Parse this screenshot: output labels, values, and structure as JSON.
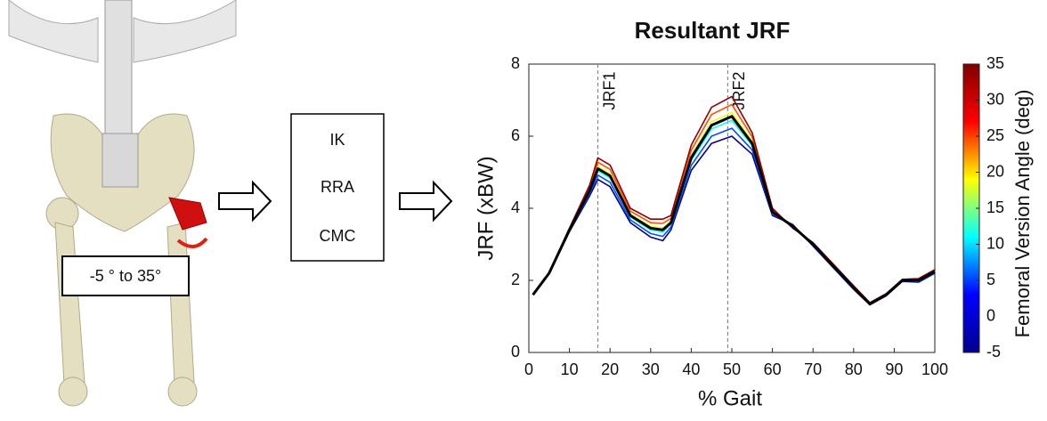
{
  "diagram": {
    "range_label": "-5 ° to 35°",
    "steps": [
      "IK",
      "RRA",
      "CMC"
    ]
  },
  "chart_data": {
    "type": "line",
    "title": "Resultant JRF",
    "xlabel": "% Gait",
    "ylabel": "JRF (xBW)",
    "x": [
      1,
      5,
      10,
      15,
      17,
      20,
      25,
      30,
      33,
      35,
      40,
      45,
      50,
      55,
      60,
      65,
      70,
      75,
      80,
      84,
      88,
      92,
      96,
      100
    ],
    "series": [
      {
        "color": "#00008f",
        "values": [
          1.6,
          2.18,
          3.35,
          4.35,
          4.8,
          4.6,
          3.6,
          3.2,
          3.1,
          3.4,
          5.05,
          5.8,
          6.0,
          5.5,
          3.8,
          3.55,
          2.95,
          2.35,
          1.75,
          1.32,
          1.57,
          1.97,
          1.95,
          2.2
        ]
      },
      {
        "color": "#0050ff",
        "values": [
          1.6,
          2.19,
          3.37,
          4.41,
          4.92,
          4.72,
          3.68,
          3.3,
          3.22,
          3.48,
          5.19,
          6.0,
          6.22,
          5.62,
          3.84,
          3.53,
          2.97,
          2.37,
          1.77,
          1.33,
          1.58,
          1.98,
          1.97,
          2.22
        ]
      },
      {
        "color": "#10ffef",
        "values": [
          1.6,
          2.2,
          3.39,
          4.47,
          5.04,
          4.84,
          3.76,
          3.4,
          3.34,
          3.56,
          5.33,
          6.2,
          6.44,
          5.74,
          3.88,
          3.51,
          2.99,
          2.39,
          1.79,
          1.34,
          1.59,
          1.99,
          1.99,
          2.24
        ]
      },
      {
        "color": "#efff10",
        "values": [
          1.6,
          2.2,
          3.41,
          4.53,
          5.16,
          4.96,
          3.84,
          3.5,
          3.46,
          3.64,
          5.47,
          6.4,
          6.66,
          5.86,
          3.92,
          3.49,
          3.01,
          2.41,
          1.81,
          1.36,
          1.61,
          2.01,
          2.01,
          2.26
        ]
      },
      {
        "color": "#ff5000",
        "values": [
          1.6,
          2.21,
          3.43,
          4.59,
          5.28,
          5.08,
          3.92,
          3.6,
          3.58,
          3.72,
          5.61,
          6.6,
          6.88,
          5.98,
          3.96,
          3.47,
          3.03,
          2.43,
          1.83,
          1.37,
          1.62,
          2.02,
          2.03,
          2.28
        ]
      },
      {
        "color": "#8f0000",
        "values": [
          1.6,
          2.22,
          3.45,
          4.65,
          5.4,
          5.2,
          4.0,
          3.7,
          3.7,
          3.8,
          5.75,
          6.8,
          7.1,
          6.1,
          4.0,
          3.45,
          3.05,
          2.45,
          1.85,
          1.38,
          1.63,
          2.03,
          2.05,
          2.3
        ]
      },
      {
        "color": "#000000",
        "values": [
          1.6,
          2.2,
          3.4,
          4.5,
          5.1,
          4.9,
          3.8,
          3.45,
          3.4,
          3.6,
          5.4,
          6.3,
          6.55,
          5.8,
          3.9,
          3.5,
          3.0,
          2.4,
          1.8,
          1.35,
          1.6,
          2.0,
          2.0,
          2.25
        ]
      }
    ],
    "xlim": [
      0,
      100
    ],
    "xticks": [
      0,
      10,
      20,
      30,
      40,
      50,
      60,
      70,
      80,
      90,
      100
    ],
    "ylim": [
      0,
      8
    ],
    "yticks": [
      0,
      2,
      4,
      6,
      8
    ],
    "vlines": [
      {
        "x": 17,
        "label": "JRF1"
      },
      {
        "x": 49,
        "label": "JRF2"
      }
    ],
    "colorbar": {
      "label": "Femoral Version  Angle (deg)",
      "lim": [
        -5,
        35
      ],
      "ticks": [
        -5,
        0,
        5,
        10,
        15,
        20,
        25,
        30,
        35
      ],
      "colormap": [
        "#00008f",
        "#0000ff",
        "#00ffff",
        "#ffff00",
        "#ff0000",
        "#800000"
      ]
    }
  }
}
